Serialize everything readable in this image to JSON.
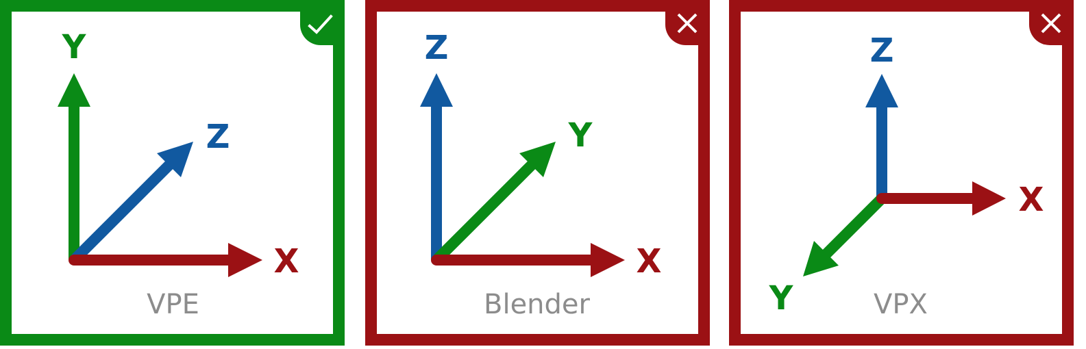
{
  "colors": {
    "correct": "#0a8a16",
    "incorrect": "#9b1114",
    "x_axis": "#9b1114",
    "y_axis": "#0a8a16",
    "z_axis": "#1159a0",
    "name_text": "#8c8c8c",
    "background": "#ffffff"
  },
  "panels": [
    {
      "name": "VPE",
      "status": "correct",
      "badge_icon": "check-icon",
      "axes": {
        "x": "X",
        "y": "Y",
        "z": "Z"
      }
    },
    {
      "name": "Blender",
      "status": "incorrect",
      "badge_icon": "cross-icon",
      "axes": {
        "x": "X",
        "y": "Y",
        "z": "Z"
      }
    },
    {
      "name": "VPX",
      "status": "incorrect",
      "badge_icon": "cross-icon",
      "axes": {
        "x": "X",
        "y": "Y",
        "z": "Z"
      }
    }
  ]
}
